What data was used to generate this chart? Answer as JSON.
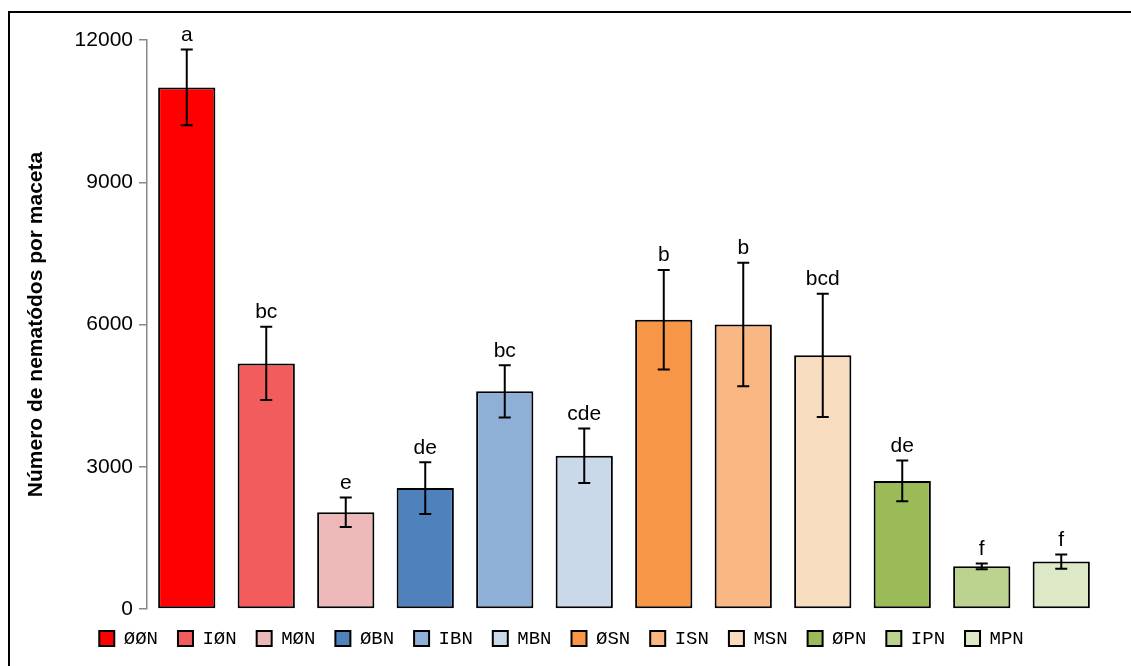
{
  "chart_data": {
    "type": "bar",
    "ylabel": "Número de nematódos por maceta",
    "stacked": true,
    "categories": [
      null,
      null,
      null,
      null,
      null,
      null,
      null,
      null,
      null,
      null,
      null,
      null
    ],
    "series": [
      {
        "name": "ØØN",
        "color": "#ff0000",
        "values": [
          11000,
          null,
          null,
          null,
          null,
          null,
          null,
          null,
          null,
          null,
          null,
          null
        ],
        "errors": [
          800,
          null,
          null,
          null,
          null,
          null,
          null,
          null,
          null,
          null,
          null,
          null
        ]
      },
      {
        "name": "IØN",
        "color": "#f25c5c",
        "values": [
          null,
          5180,
          null,
          null,
          null,
          null,
          null,
          null,
          null,
          null,
          null,
          null
        ],
        "errors": [
          null,
          770,
          null,
          null,
          null,
          null,
          null,
          null,
          null,
          null,
          null,
          null
        ]
      },
      {
        "name": "MØN",
        "color": "#ecb8b8",
        "values": [
          null,
          null,
          2040,
          null,
          null,
          null,
          null,
          null,
          null,
          null,
          null,
          null
        ],
        "errors": [
          null,
          null,
          310,
          null,
          null,
          null,
          null,
          null,
          null,
          null,
          null,
          null
        ]
      },
      {
        "name": "ØBN",
        "color": "#4f81bd",
        "values": [
          null,
          null,
          null,
          2550,
          null,
          null,
          null,
          null,
          null,
          null,
          null,
          null
        ],
        "errors": [
          null,
          null,
          null,
          545,
          null,
          null,
          null,
          null,
          null,
          null,
          null,
          null
        ]
      },
      {
        "name": "IBN",
        "color": "#8fb0d6",
        "values": [
          null,
          null,
          null,
          null,
          4590,
          null,
          null,
          null,
          null,
          null,
          null,
          null
        ],
        "errors": [
          null,
          null,
          null,
          null,
          550,
          null,
          null,
          null,
          null,
          null,
          null,
          null
        ]
      },
      {
        "name": "MBN",
        "color": "#c9d9ea",
        "values": [
          null,
          null,
          null,
          null,
          null,
          3230,
          null,
          null,
          null,
          null,
          null,
          null
        ],
        "errors": [
          null,
          null,
          null,
          null,
          null,
          575,
          null,
          null,
          null,
          null,
          null,
          null
        ]
      },
      {
        "name": "ØSN",
        "color": "#f79646",
        "values": [
          null,
          null,
          null,
          null,
          null,
          null,
          6100,
          null,
          null,
          null,
          null,
          null
        ],
        "errors": [
          null,
          null,
          null,
          null,
          null,
          null,
          1050,
          null,
          null,
          null,
          null,
          null
        ]
      },
      {
        "name": "ISN",
        "color": "#f9b784",
        "values": [
          null,
          null,
          null,
          null,
          null,
          null,
          null,
          6000,
          null,
          null,
          null,
          null
        ],
        "errors": [
          null,
          null,
          null,
          null,
          null,
          null,
          null,
          1300,
          null,
          null,
          null,
          null
        ]
      },
      {
        "name": "MSN",
        "color": "#f7dcc0",
        "values": [
          null,
          null,
          null,
          null,
          null,
          null,
          null,
          null,
          5350,
          null,
          null,
          null
        ],
        "errors": [
          null,
          null,
          null,
          null,
          null,
          null,
          null,
          null,
          1300,
          null,
          null,
          null
        ]
      },
      {
        "name": "ØPN",
        "color": "#9bbb59",
        "values": [
          null,
          null,
          null,
          null,
          null,
          null,
          null,
          null,
          null,
          2700,
          null,
          null
        ],
        "errors": [
          null,
          null,
          null,
          null,
          null,
          null,
          null,
          null,
          null,
          430,
          null,
          null
        ]
      },
      {
        "name": "IPN",
        "color": "#bcd38f",
        "values": [
          null,
          null,
          null,
          null,
          null,
          null,
          null,
          null,
          null,
          null,
          900,
          null
        ],
        "errors": [
          null,
          null,
          null,
          null,
          null,
          null,
          null,
          null,
          null,
          null,
          60,
          null
        ]
      },
      {
        "name": "MPN",
        "color": "#dde8c6",
        "values": [
          null,
          null,
          null,
          null,
          null,
          null,
          null,
          null,
          null,
          null,
          null,
          1000
        ],
        "errors": [
          null,
          null,
          null,
          null,
          null,
          null,
          null,
          null,
          null,
          null,
          null,
          150
        ]
      }
    ],
    "ylim": [
      0,
      12000
    ],
    "yticks": [
      0,
      3000,
      6000,
      9000,
      12000
    ],
    "tick_labels": "y",
    "legend": "bottom",
    "annotations": [
      "a",
      "bc",
      "e",
      "de",
      "bc",
      "cde",
      "b",
      "b",
      "bcd",
      "de",
      "f",
      "f"
    ]
  }
}
